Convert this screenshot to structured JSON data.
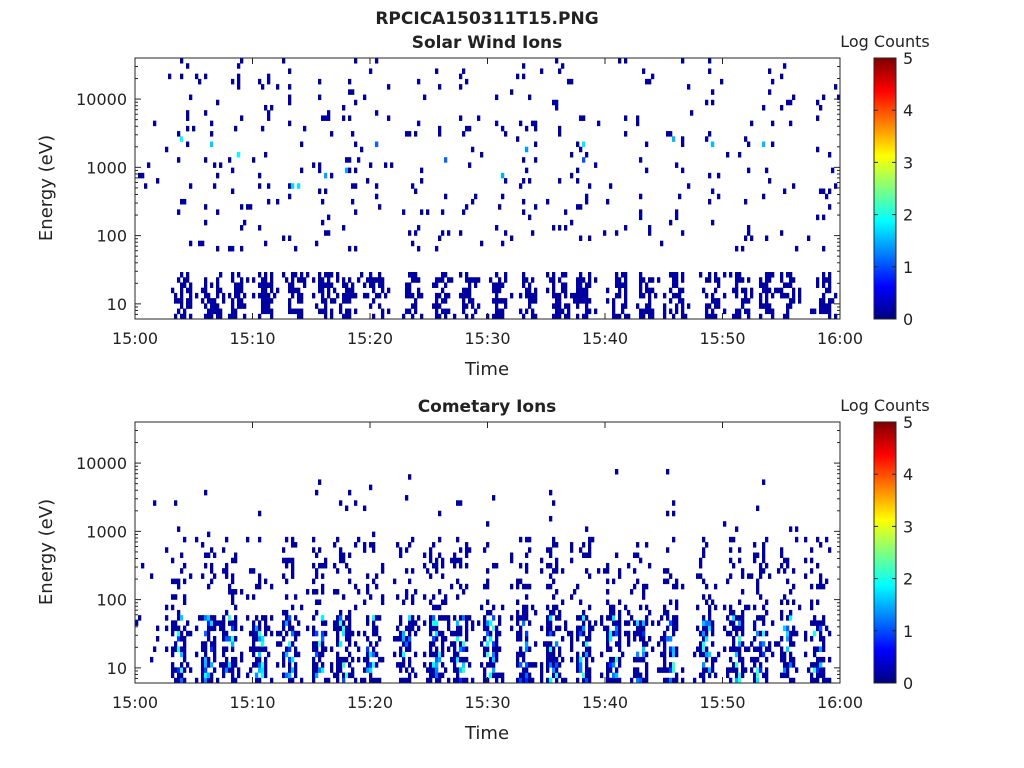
{
  "figure": {
    "title": "RPCICA150311T15.PNG"
  },
  "colors": {
    "background": "#ffffff",
    "axis": "#262626",
    "colormap": [
      "#00007f",
      "#0000ff",
      "#007fff",
      "#00ffff",
      "#7fff7f",
      "#ffff00",
      "#ff7f00",
      "#ff0000",
      "#7f0000"
    ]
  },
  "chart_data": [
    {
      "type": "heatmap",
      "title": "Solar Wind Ions",
      "xlabel": "Time",
      "ylabel": "Energy (eV)",
      "x_range": [
        "15:00",
        "16:00"
      ],
      "x_ticks": [
        "15:00",
        "15:10",
        "15:20",
        "15:30",
        "15:40",
        "15:50",
        "16:00"
      ],
      "y_scale": "log",
      "y_range": [
        6,
        40000
      ],
      "y_ticks": [
        10,
        100,
        1000,
        10000
      ],
      "y_tick_labels": [
        "10",
        "100",
        "1000",
        "10000"
      ],
      "colorbar": {
        "title": "Log Counts",
        "range": [
          0,
          5
        ],
        "ticks": [
          "0",
          "1",
          "2",
          "3",
          "4",
          "5"
        ]
      },
      "colormap": "jet",
      "sweeps_minutes": [
        4,
        6.5,
        8.5,
        11,
        13.5,
        16,
        18,
        20.5,
        23.5,
        26,
        28,
        31,
        33.5,
        36,
        38,
        41,
        43.5,
        46,
        49,
        51.5,
        53.5,
        55.5,
        58.5
      ],
      "features": [
        {
          "kind": "low-energy band",
          "energy_range_eV": [
            6,
            28
          ],
          "typical_log_counts": 0.1
        },
        {
          "kind": "sparse high-energy counts",
          "energy_range_eV": [
            60,
            30000
          ],
          "typical_log_counts": 0.1
        },
        {
          "kind": "enhanced patches",
          "times_minutes": [
            4,
            8.5,
            11,
            20,
            23.5,
            49,
            58.5
          ],
          "energy_range_eV": [
            500,
            3000
          ],
          "typical_log_counts": 1.3
        }
      ]
    },
    {
      "type": "heatmap",
      "title": "Cometary Ions",
      "xlabel": "Time",
      "ylabel": "Energy (eV)",
      "x_range": [
        "15:00",
        "16:00"
      ],
      "x_ticks": [
        "15:00",
        "15:10",
        "15:20",
        "15:30",
        "15:40",
        "15:50",
        "16:00"
      ],
      "y_scale": "log",
      "y_range": [
        6,
        40000
      ],
      "y_ticks": [
        10,
        100,
        1000,
        10000
      ],
      "y_tick_labels": [
        "10",
        "100",
        "1000",
        "10000"
      ],
      "colorbar": {
        "title": "Log Counts",
        "range": [
          0,
          5
        ],
        "ticks": [
          "0",
          "1",
          "2",
          "3",
          "4",
          "5"
        ]
      },
      "colormap": "jet",
      "sweeps_minutes": [
        3.5,
        6,
        8,
        10.5,
        13,
        15.5,
        17.5,
        20,
        23,
        25.5,
        27.5,
        30,
        33,
        35.5,
        38,
        40.5,
        43,
        45.5,
        48.5,
        51,
        53,
        55.5,
        58
      ],
      "features": [
        {
          "kind": "low-energy enhancement",
          "energy_range_eV": [
            6,
            60
          ],
          "typical_log_counts": 1.2
        },
        {
          "kind": "mid-energy scatter",
          "energy_range_eV": [
            60,
            800
          ],
          "typical_log_counts": 0.3
        },
        {
          "kind": "isolated high-energy counts",
          "energy_range_eV": [
            1000,
            7000
          ],
          "typical_log_counts": 0.1
        }
      ]
    }
  ]
}
